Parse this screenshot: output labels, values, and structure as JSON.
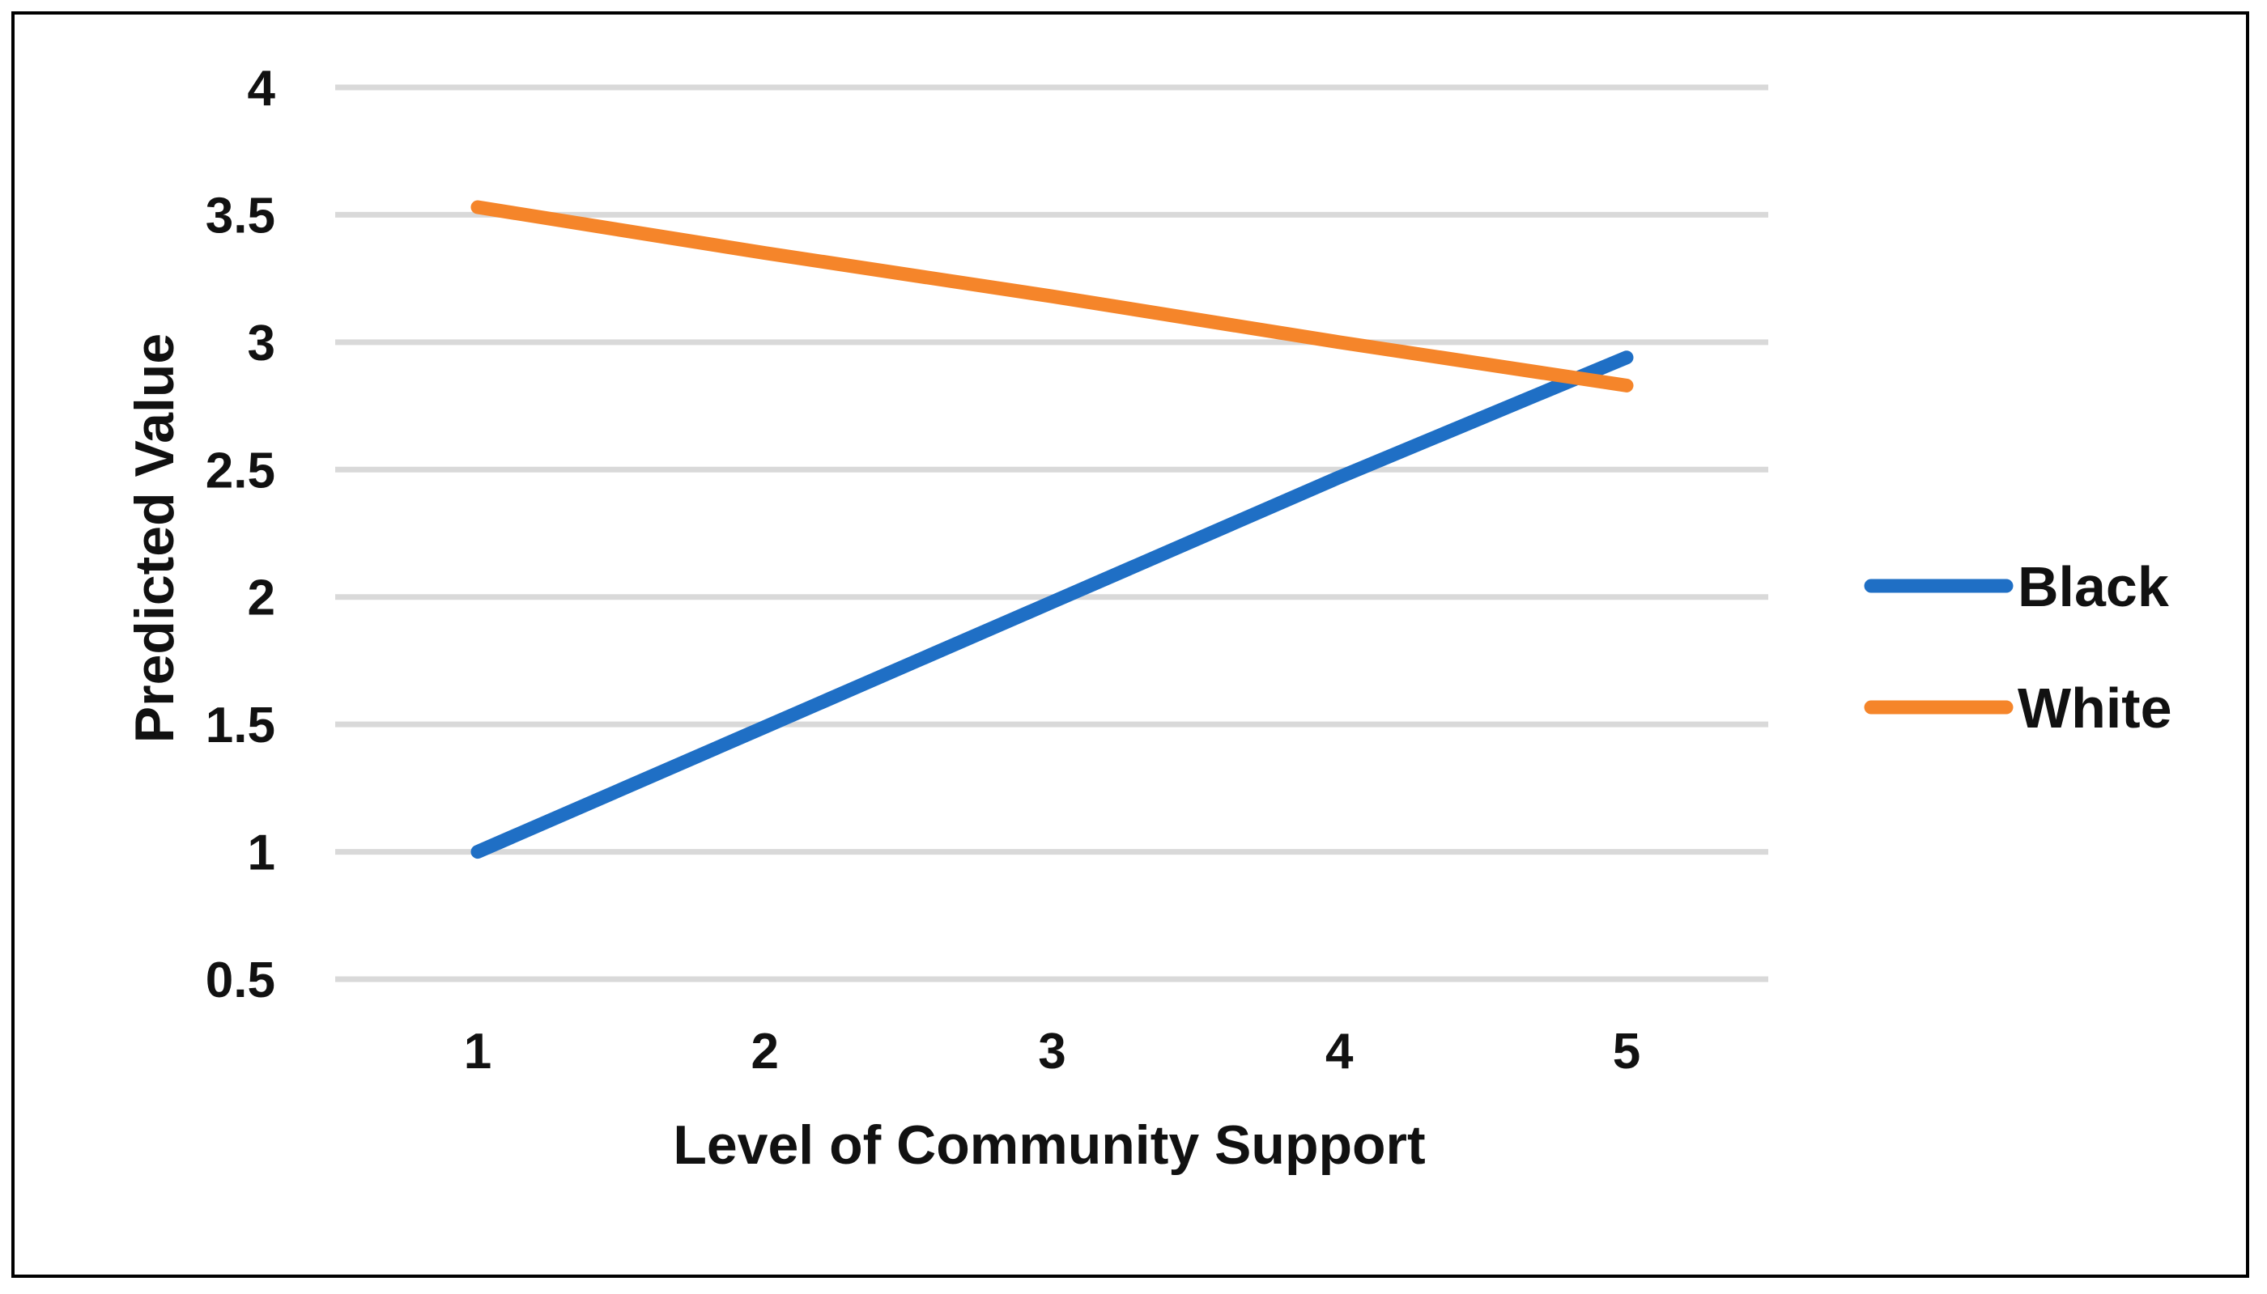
{
  "chart_data": {
    "type": "line",
    "title": "",
    "xlabel": "Level of Community Support",
    "ylabel": "Predicted Value",
    "x": [
      1,
      2,
      3,
      4,
      5
    ],
    "x_tick_labels": [
      "1",
      "2",
      "3",
      "4",
      "5"
    ],
    "y_ticks": [
      0.5,
      1,
      1.5,
      2,
      2.5,
      3,
      3.5,
      4
    ],
    "y_tick_labels": [
      "0.5",
      "1",
      "1.5",
      "2",
      "2.5",
      "3",
      "3.5",
      "4"
    ],
    "ylim": [
      0.5,
      4
    ],
    "grid": "horizontal",
    "legend_position": "right",
    "series": [
      {
        "name": "Black",
        "color": "#1f6fc5",
        "values": [
          1.0,
          1.49,
          1.98,
          2.47,
          2.94
        ]
      },
      {
        "name": "White",
        "color": "#f5852a",
        "values": [
          3.53,
          3.35,
          3.18,
          3.0,
          2.83
        ]
      }
    ]
  }
}
